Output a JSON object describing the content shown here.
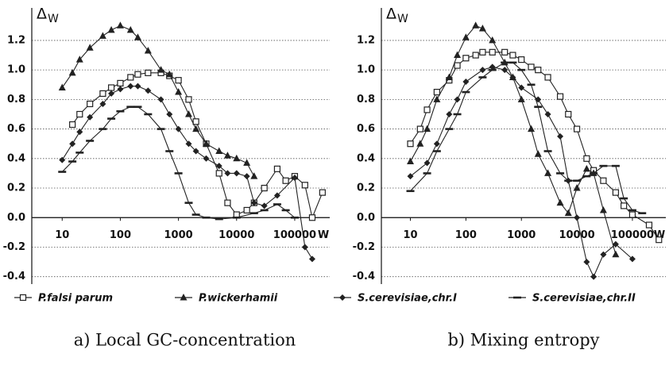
{
  "chart_data": [
    {
      "type": "line",
      "caption": "a)  Local GC-concentration",
      "ylabel": "Δ",
      "ylabel_subscript": "W",
      "xlabel": "W",
      "xscale": "log",
      "xlim": [
        3,
        400000
      ],
      "xticks": [
        10,
        100,
        1000,
        10000,
        100000
      ],
      "ylim": [
        -0.45,
        1.35
      ],
      "yticks": [
        -0.4,
        -0.2,
        {
          "value": 0,
          "label": "0.0"
        },
        0.2,
        0.4,
        0.6,
        0.8,
        {
          "value": 1,
          "label": "1.0"
        },
        1.2
      ],
      "grid": true,
      "series": [
        {
          "name": "P.falsi parum",
          "color": "#222",
          "marker": "square",
          "x": [
            15,
            20,
            30,
            50,
            70,
            100,
            150,
            200,
            300,
            500,
            700,
            1000,
            1500,
            2000,
            3000,
            5000,
            7000,
            10000,
            15000,
            20000,
            30000,
            50000,
            70000,
            100000,
            150000,
            200000,
            300000
          ],
          "values": [
            0.63,
            0.7,
            0.77,
            0.84,
            0.88,
            0.91,
            0.95,
            0.97,
            0.98,
            0.98,
            0.96,
            0.93,
            0.8,
            0.65,
            0.5,
            0.3,
            0.1,
            0.02,
            0.05,
            0.1,
            0.2,
            0.33,
            0.25,
            0.28,
            0.22,
            0.0,
            0.17
          ]
        },
        {
          "name": "P.wickerhamii",
          "color": "#222",
          "marker": "triangle",
          "x": [
            10,
            15,
            20,
            30,
            50,
            70,
            100,
            150,
            200,
            300,
            500,
            700,
            1000,
            1500,
            2000,
            3000,
            5000,
            7000,
            10000,
            15000,
            20000
          ],
          "values": [
            0.88,
            0.98,
            1.07,
            1.15,
            1.23,
            1.27,
            1.3,
            1.27,
            1.22,
            1.13,
            1.0,
            0.97,
            0.85,
            0.7,
            0.6,
            0.5,
            0.45,
            0.42,
            0.4,
            0.37,
            0.28
          ]
        },
        {
          "name": "S.cerevisiae,chr.I",
          "color": "#222",
          "marker": "diamond",
          "x": [
            10,
            15,
            20,
            30,
            50,
            70,
            100,
            150,
            200,
            300,
            500,
            700,
            1000,
            1500,
            2000,
            3000,
            5000,
            7000,
            10000,
            15000,
            20000,
            30000,
            50000,
            100000,
            150000,
            200000
          ],
          "values": [
            0.39,
            0.5,
            0.58,
            0.68,
            0.77,
            0.84,
            0.87,
            0.89,
            0.89,
            0.86,
            0.8,
            0.7,
            0.6,
            0.5,
            0.45,
            0.4,
            0.35,
            0.3,
            0.3,
            0.28,
            0.1,
            0.08,
            0.15,
            0.27,
            -0.2,
            -0.28
          ]
        },
        {
          "name": "S.cerevisiae,chr.II",
          "color": "#222",
          "marker": "dash",
          "x": [
            10,
            15,
            20,
            30,
            50,
            70,
            100,
            150,
            200,
            300,
            500,
            700,
            1000,
            1500,
            2000,
            3000,
            5000,
            10000,
            20000,
            30000,
            50000,
            70000,
            100000
          ],
          "values": [
            0.31,
            0.38,
            0.44,
            0.52,
            0.6,
            0.67,
            0.72,
            0.75,
            0.75,
            0.7,
            0.6,
            0.45,
            0.3,
            0.1,
            0.02,
            0.0,
            -0.01,
            0.0,
            0.03,
            0.05,
            0.09,
            0.05,
            0.0
          ]
        }
      ]
    },
    {
      "type": "line",
      "caption": "b)  Mixing entropy",
      "ylabel": "Δ",
      "ylabel_subscript": "W",
      "xlabel": "W",
      "xscale": "log",
      "xlim": [
        3,
        400000
      ],
      "xticks": [
        10,
        100,
        1000,
        10000,
        100000
      ],
      "ylim": [
        -0.45,
        1.35
      ],
      "yticks": [
        -0.4,
        -0.2,
        {
          "value": 0,
          "label": "0.0"
        },
        0.2,
        0.4,
        0.6,
        0.8,
        {
          "value": 1,
          "label": "1.0"
        },
        1.2
      ],
      "grid": true,
      "series": [
        {
          "color": "#222",
          "marker": "square",
          "x": [
            10,
            15,
            20,
            30,
            50,
            70,
            100,
            150,
            200,
            300,
            500,
            700,
            1000,
            1500,
            2000,
            3000,
            5000,
            7000,
            10000,
            15000,
            20000,
            30000,
            50000,
            70000,
            100000,
            200000,
            300000
          ],
          "values": [
            0.5,
            0.6,
            0.73,
            0.85,
            0.93,
            1.03,
            1.08,
            1.1,
            1.12,
            1.12,
            1.12,
            1.1,
            1.07,
            1.02,
            1.0,
            0.95,
            0.82,
            0.7,
            0.6,
            0.4,
            0.32,
            0.25,
            0.17,
            0.08,
            0.02,
            -0.05,
            -0.15
          ]
        },
        {
          "color": "#222",
          "marker": "triangle",
          "x": [
            10,
            15,
            20,
            30,
            50,
            70,
            100,
            150,
            200,
            300,
            500,
            700,
            1000,
            1500,
            2000,
            3000,
            5000,
            7000,
            10000,
            15000,
            20000,
            30000,
            50000
          ],
          "values": [
            0.38,
            0.5,
            0.6,
            0.8,
            0.95,
            1.1,
            1.22,
            1.3,
            1.28,
            1.2,
            1.05,
            0.95,
            0.8,
            0.6,
            0.43,
            0.3,
            0.1,
            0.03,
            0.2,
            0.33,
            0.3,
            0.05,
            -0.25
          ]
        },
        {
          "color": "#222",
          "marker": "diamond",
          "x": [
            10,
            20,
            30,
            50,
            70,
            100,
            200,
            300,
            500,
            700,
            1000,
            2000,
            3000,
            5000,
            7000,
            10000,
            15000,
            20000,
            30000,
            50000,
            100000
          ],
          "values": [
            0.28,
            0.37,
            0.5,
            0.7,
            0.8,
            0.92,
            1.0,
            1.02,
            1.0,
            0.95,
            0.88,
            0.8,
            0.7,
            0.55,
            0.25,
            0.0,
            -0.3,
            -0.4,
            -0.25,
            -0.18,
            -0.28
          ]
        },
        {
          "color": "#222",
          "marker": "dash",
          "x": [
            10,
            20,
            30,
            50,
            70,
            100,
            200,
            300,
            500,
            700,
            1000,
            1500,
            2000,
            3000,
            5000,
            7000,
            10000,
            15000,
            20000,
            30000,
            50000,
            70000,
            100000,
            150000
          ],
          "values": [
            0.18,
            0.3,
            0.45,
            0.6,
            0.7,
            0.85,
            0.95,
            1.0,
            1.05,
            1.05,
            1.0,
            0.9,
            0.75,
            0.45,
            0.3,
            0.25,
            0.25,
            0.28,
            0.3,
            0.35,
            0.35,
            0.13,
            0.05,
            0.03
          ]
        }
      ]
    }
  ]
}
